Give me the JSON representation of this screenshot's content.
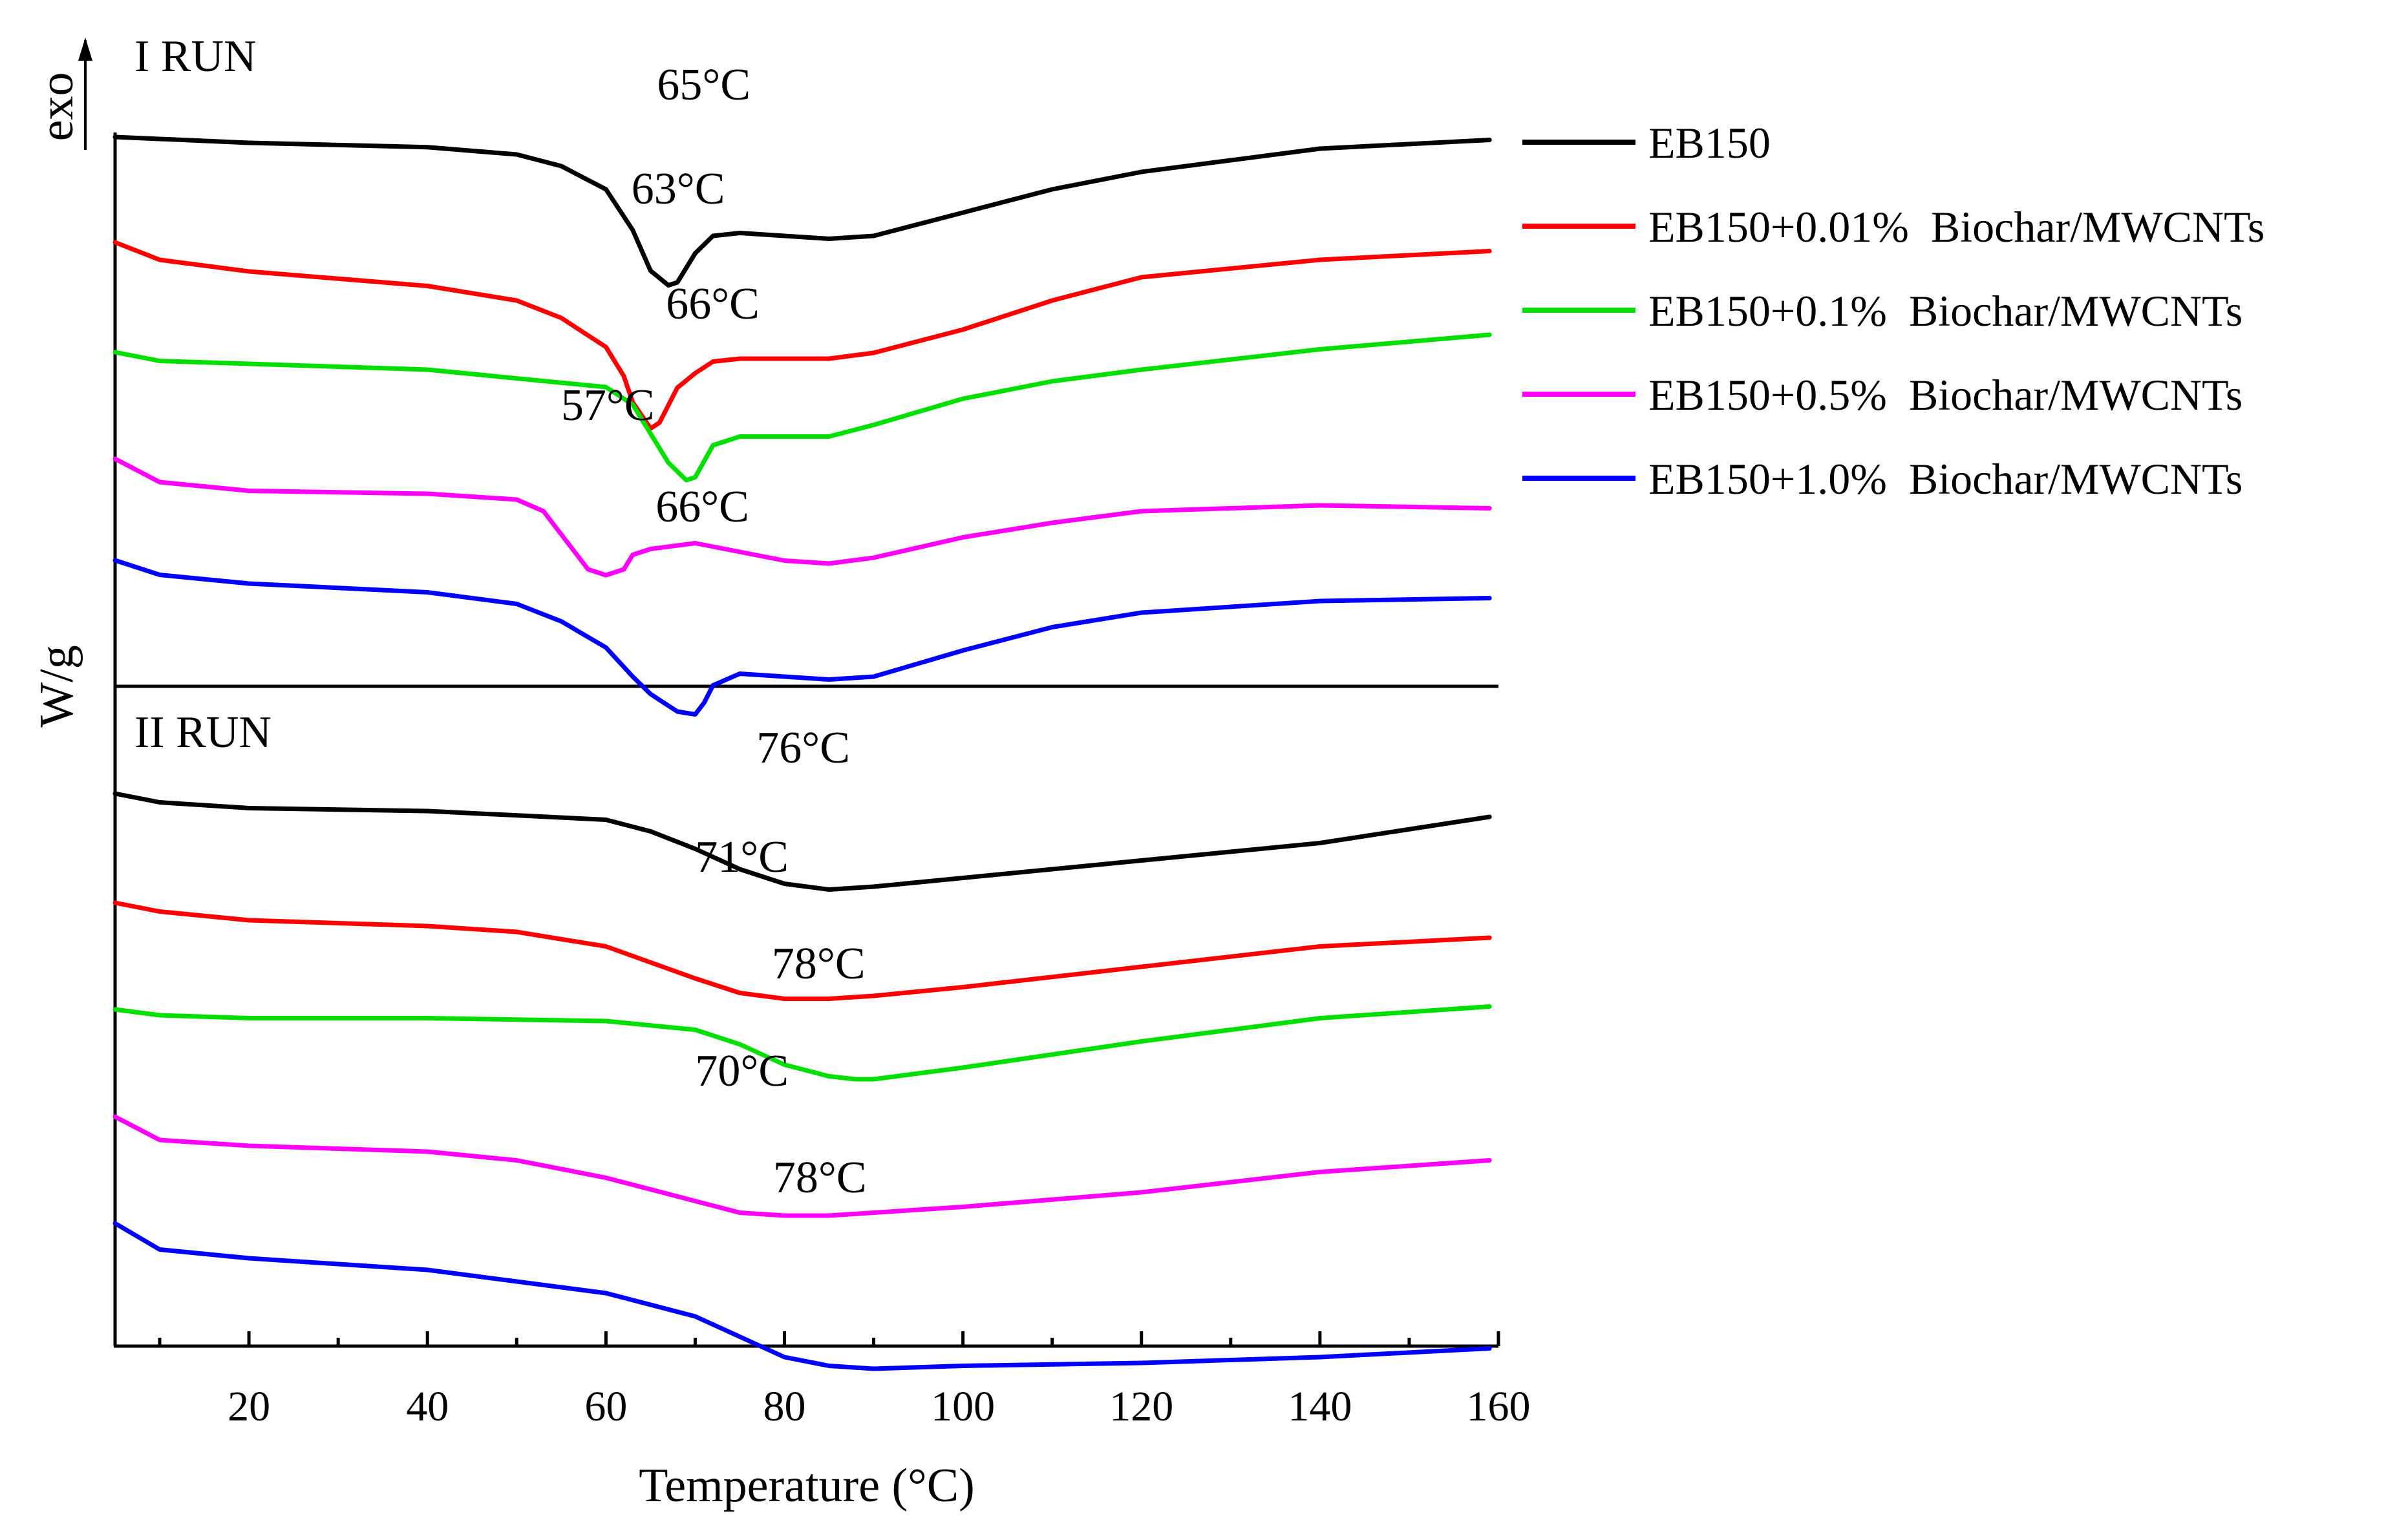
{
  "chart_data": {
    "type": "line",
    "title": "",
    "xlabel": "Temperature (°C)",
    "ylabel": "W/g",
    "exo_label": "exo",
    "xlim": [
      5,
      160
    ],
    "xticks": [
      20,
      40,
      60,
      80,
      100,
      120,
      140,
      160
    ],
    "xtick_labels": [
      "20",
      "40",
      "60",
      "80",
      "100",
      "120",
      "140",
      "160"
    ],
    "legend_position": "right",
    "series": [
      {
        "name": "EB150",
        "color": "#000000"
      },
      {
        "name": "EB150+0.01%  Biochar/MWCNTs",
        "color": "#ff0000"
      },
      {
        "name": "EB150+0.1%  Biochar/MWCNTs",
        "color": "#00e000"
      },
      {
        "name": "EB150+0.5%  Biochar/MWCNTs",
        "color": "#ff00ff"
      },
      {
        "name": "EB150+1.0%  Biochar/MWCNTs",
        "color": "#0000ff"
      }
    ],
    "panels": [
      {
        "label": "I RUN",
        "curves": [
          {
            "series": 0,
            "peak_label": "65°C",
            "x": [
              5,
              20,
              40,
              50,
              55,
              60,
              63,
              65,
              67,
              68,
              70,
              72,
              75,
              80,
              85,
              90,
              100,
              110,
              120,
              140,
              159
            ],
            "y": [
              0,
              -0.2,
              -0.35,
              -0.6,
              -1.0,
              -1.8,
              -3.2,
              -4.6,
              -5.1,
              -5.0,
              -4.0,
              -3.4,
              -3.3,
              -3.4,
              -3.5,
              -3.4,
              -2.6,
              -1.8,
              -1.2,
              -0.4,
              -0.1
            ]
          },
          {
            "series": 1,
            "peak_label": "63°C",
            "x": [
              5,
              10,
              20,
              40,
              50,
              55,
              58,
              60,
              62,
              63,
              65,
              66,
              68,
              70,
              72,
              75,
              80,
              85,
              90,
              100,
              110,
              120,
              140,
              159
            ],
            "y": [
              0,
              -0.6,
              -1.0,
              -1.5,
              -2.0,
              -2.6,
              -3.2,
              -3.6,
              -4.6,
              -5.5,
              -6.4,
              -6.2,
              -5.0,
              -4.5,
              -4.1,
              -4.0,
              -4.0,
              -4.0,
              -3.8,
              -3.0,
              -2.0,
              -1.2,
              -0.6,
              -0.3
            ]
          },
          {
            "series": 2,
            "peak_label": "66°C",
            "x": [
              5,
              10,
              20,
              40,
              60,
              63,
              65,
              67,
              69,
              70,
              72,
              75,
              80,
              85,
              90,
              100,
              110,
              120,
              140,
              159
            ],
            "y": [
              0,
              -0.3,
              -0.4,
              -0.6,
              -1.2,
              -1.8,
              -2.8,
              -3.8,
              -4.4,
              -4.3,
              -3.2,
              -2.9,
              -2.9,
              -2.9,
              -2.5,
              -1.6,
              -1.0,
              -0.6,
              0.1,
              0.6
            ]
          },
          {
            "series": 3,
            "peak_label": "57°C",
            "x": [
              5,
              10,
              20,
              40,
              50,
              53,
              55,
              58,
              60,
              62,
              63,
              65,
              70,
              75,
              80,
              85,
              90,
              100,
              110,
              120,
              140,
              159
            ],
            "y": [
              0,
              -0.8,
              -1.1,
              -1.2,
              -1.4,
              -1.8,
              -2.6,
              -3.8,
              -4.0,
              -3.8,
              -3.3,
              -3.1,
              -2.9,
              -3.2,
              -3.5,
              -3.6,
              -3.4,
              -2.7,
              -2.2,
              -1.8,
              -1.6,
              -1.7
            ]
          },
          {
            "series": 4,
            "peak_label": "66°C",
            "x": [
              5,
              10,
              20,
              40,
              50,
              55,
              60,
              63,
              65,
              68,
              70,
              71,
              72,
              75,
              80,
              85,
              90,
              100,
              110,
              120,
              140,
              159
            ],
            "y": [
              0,
              -0.5,
              -0.8,
              -1.1,
              -1.5,
              -2.1,
              -3.0,
              -4.0,
              -4.6,
              -5.2,
              -5.3,
              -4.9,
              -4.3,
              -3.9,
              -4.0,
              -4.1,
              -4.0,
              -3.1,
              -2.3,
              -1.8,
              -1.4,
              -1.3
            ]
          }
        ]
      },
      {
        "label": "II RUN",
        "curves": [
          {
            "series": 0,
            "peak_label": "76°C",
            "x": [
              5,
              10,
              20,
              40,
              60,
              65,
              70,
              75,
              80,
              85,
              90,
              100,
              120,
              140,
              159
            ],
            "y": [
              0,
              -0.3,
              -0.5,
              -0.6,
              -0.9,
              -1.3,
              -1.9,
              -2.6,
              -3.1,
              -3.3,
              -3.2,
              -2.9,
              -2.3,
              -1.7,
              -0.8
            ]
          },
          {
            "series": 1,
            "peak_label": "71°C",
            "x": [
              5,
              10,
              20,
              40,
              50,
              60,
              70,
              75,
              80,
              85,
              90,
              100,
              120,
              140,
              159
            ],
            "y": [
              0,
              -0.3,
              -0.6,
              -0.8,
              -1.0,
              -1.5,
              -2.6,
              -3.1,
              -3.3,
              -3.3,
              -3.2,
              -2.9,
              -2.2,
              -1.5,
              -1.2
            ]
          },
          {
            "series": 2,
            "peak_label": "78°C",
            "x": [
              5,
              10,
              20,
              40,
              60,
              70,
              75,
              80,
              85,
              88,
              90,
              100,
              120,
              140,
              159
            ],
            "y": [
              0,
              -0.2,
              -0.3,
              -0.3,
              -0.4,
              -0.7,
              -1.2,
              -1.9,
              -2.3,
              -2.4,
              -2.4,
              -2.0,
              -1.1,
              -0.3,
              0.1
            ]
          },
          {
            "series": 3,
            "peak_label": "70°C",
            "x": [
              5,
              10,
              20,
              40,
              50,
              60,
              70,
              75,
              80,
              85,
              90,
              100,
              120,
              140,
              159
            ],
            "y": [
              0,
              -0.8,
              -1.0,
              -1.2,
              -1.5,
              -2.1,
              -2.9,
              -3.3,
              -3.4,
              -3.4,
              -3.3,
              -3.1,
              -2.6,
              -1.9,
              -1.5
            ]
          },
          {
            "series": 4,
            "peak_label": "78°C",
            "x": [
              5,
              10,
              20,
              40,
              60,
              70,
              75,
              80,
              85,
              90,
              100,
              120,
              140,
              159
            ],
            "y": [
              0,
              -0.9,
              -1.2,
              -1.6,
              -2.4,
              -3.2,
              -3.9,
              -4.6,
              -4.9,
              -5.0,
              -4.9,
              -4.8,
              -4.6,
              -4.3
            ]
          }
        ]
      }
    ]
  }
}
